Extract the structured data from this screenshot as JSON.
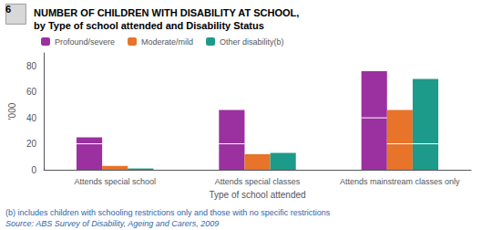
{
  "chart_data": {
    "type": "bar",
    "title": "NUMBER OF CHILDREN WITH DISABILITY AT SCHOOL,",
    "subtitle": "by Type of school attended and Disability Status",
    "graph_number": "6",
    "xlabel": "Type of school attended",
    "ylabel": "'000",
    "categories": [
      "Attends special school",
      "Attends special classes",
      "Attends mainstream classes only"
    ],
    "series": [
      {
        "name": "Profound/severe",
        "color": "#9B30A0",
        "values": [
          25,
          46,
          76
        ],
        "splits": [
          20,
          20,
          40
        ]
      },
      {
        "name": "Moderate/mild",
        "color": "#E8732A",
        "values": [
          3,
          12,
          46
        ],
        "splits": [
          3,
          12,
          20
        ]
      },
      {
        "name": "Other disability(b)",
        "color": "#1D9B8A",
        "values": [
          1,
          13,
          70
        ],
        "splits": [
          1,
          13,
          20
        ]
      }
    ],
    "ylim": [
      0,
      90
    ],
    "yticks": [
      0,
      20,
      40,
      60,
      80
    ],
    "grid": false,
    "legend": "upper left",
    "notes": [
      "(b) includes children with schooling restrictions only and those with no specific restrictions",
      "Source: ABS Survey of Disability, Ageing and Carers, 2009"
    ]
  }
}
